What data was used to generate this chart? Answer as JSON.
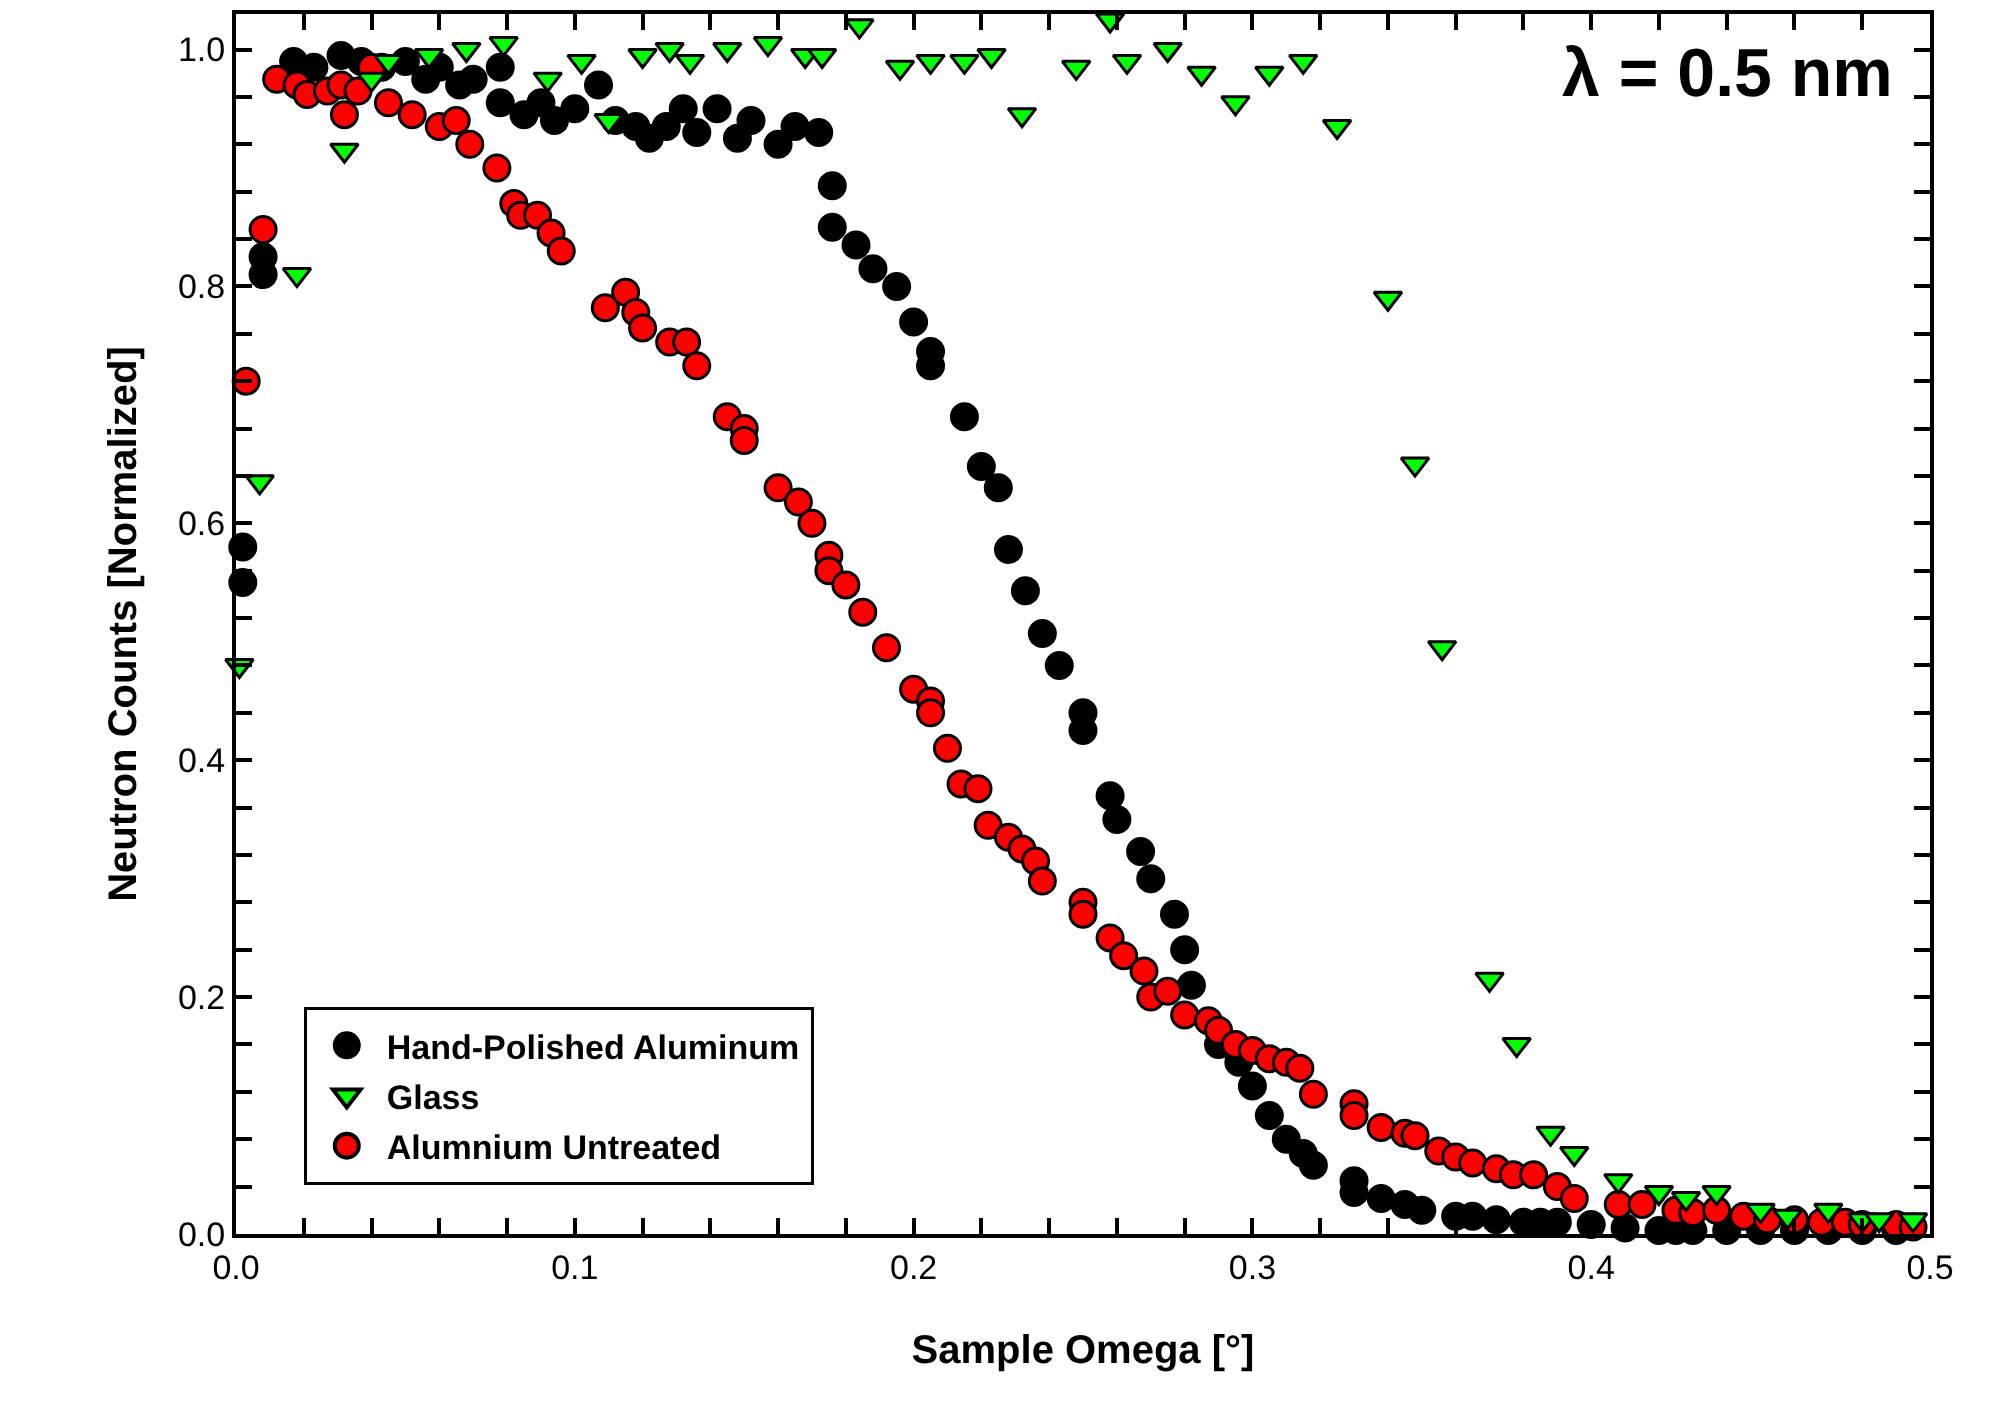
{
  "chart_data": {
    "type": "scatter",
    "xlabel": "Sample Omega [°]",
    "ylabel": "Neutron Counts [Normalized]",
    "annotations": [
      "λ = 0.5 nm"
    ],
    "xlim": [
      0,
      0.5
    ],
    "ylim": [
      0,
      1.03
    ],
    "xticks": [
      {
        "value": 0,
        "label": "0.0"
      },
      {
        "value": 0.02,
        "label": null
      },
      {
        "value": 0.04,
        "label": null
      },
      {
        "value": 0.06,
        "label": null
      },
      {
        "value": 0.08,
        "label": null
      },
      0.1,
      {
        "value": 0.12,
        "label": null
      },
      {
        "value": 0.14,
        "label": null
      },
      {
        "value": 0.16,
        "label": null
      },
      {
        "value": 0.18,
        "label": null
      },
      0.2,
      {
        "value": 0.22,
        "label": null
      },
      {
        "value": 0.24,
        "label": null
      },
      {
        "value": 0.26,
        "label": null
      },
      {
        "value": 0.28,
        "label": null
      },
      0.3,
      {
        "value": 0.32,
        "label": null
      },
      {
        "value": 0.34,
        "label": null
      },
      {
        "value": 0.36,
        "label": null
      },
      {
        "value": 0.38,
        "label": null
      },
      0.4,
      {
        "value": 0.42,
        "label": null
      },
      {
        "value": 0.44,
        "label": null
      },
      {
        "value": 0.46,
        "label": null
      },
      {
        "value": 0.48,
        "label": null
      },
      0.5
    ],
    "yticks": [
      {
        "value": 0,
        "label": "0.0"
      },
      {
        "value": 0.04,
        "label": null
      },
      {
        "value": 0.08,
        "label": null
      },
      {
        "value": 0.12,
        "label": null
      },
      {
        "value": 0.16,
        "label": null
      },
      0.2,
      {
        "value": 0.24,
        "label": null
      },
      {
        "value": 0.28,
        "label": null
      },
      {
        "value": 0.32,
        "label": null
      },
      {
        "value": 0.36,
        "label": null
      },
      0.4,
      {
        "value": 0.44,
        "label": null
      },
      {
        "value": 0.48,
        "label": null
      },
      {
        "value": 0.52,
        "label": null
      },
      {
        "value": 0.56,
        "label": null
      },
      0.6,
      {
        "value": 0.64,
        "label": null
      },
      {
        "value": 0.68,
        "label": null
      },
      {
        "value": 0.72,
        "label": null
      },
      {
        "value": 0.76,
        "label": null
      },
      0.8,
      {
        "value": 0.84,
        "label": null
      },
      {
        "value": 0.88,
        "label": null
      },
      {
        "value": 0.92,
        "label": null
      },
      {
        "value": 0.96,
        "label": null
      },
      {
        "value": 1,
        "label": "1.0"
      }
    ],
    "legend": "bottom left",
    "series": [
      {
        "name": "Hand-Polished Aluminum",
        "color": "#000000",
        "marker": "circle",
        "x": [
          0.002,
          0.002,
          0.008,
          0.008,
          0.017,
          0.023,
          0.031,
          0.037,
          0.043,
          0.05,
          0.056,
          0.06,
          0.066,
          0.07,
          0.078,
          0.078,
          0.085,
          0.09,
          0.094,
          0.1,
          0.107,
          0.112,
          0.118,
          0.122,
          0.127,
          0.132,
          0.136,
          0.142,
          0.148,
          0.152,
          0.16,
          0.165,
          0.172,
          0.176,
          0.176,
          0.183,
          0.188,
          0.195,
          0.2,
          0.205,
          0.205,
          0.215,
          0.22,
          0.225,
          0.228,
          0.233,
          0.238,
          0.243,
          0.25,
          0.25,
          0.258,
          0.26,
          0.267,
          0.27,
          0.277,
          0.28,
          0.282,
          0.29,
          0.296,
          0.3,
          0.305,
          0.31,
          0.315,
          0.318,
          0.33,
          0.33,
          0.338,
          0.345,
          0.35,
          0.36,
          0.365,
          0.372,
          0.38,
          0.385,
          0.39,
          0.4,
          0.41,
          0.42,
          0.425,
          0.43,
          0.44,
          0.45,
          0.46,
          0.47,
          0.48,
          0.49
        ],
        "values": [
          0.58,
          0.55,
          0.825,
          0.81,
          0.99,
          0.985,
          0.995,
          0.99,
          0.985,
          0.99,
          0.975,
          0.985,
          0.97,
          0.975,
          0.985,
          0.955,
          0.945,
          0.955,
          0.94,
          0.95,
          0.97,
          0.94,
          0.935,
          0.925,
          0.935,
          0.95,
          0.93,
          0.95,
          0.925,
          0.94,
          0.92,
          0.935,
          0.93,
          0.885,
          0.85,
          0.835,
          0.815,
          0.8,
          0.77,
          0.745,
          0.733,
          0.69,
          0.648,
          0.63,
          0.578,
          0.543,
          0.507,
          0.48,
          0.44,
          0.425,
          0.37,
          0.35,
          0.323,
          0.3,
          0.27,
          0.24,
          0.21,
          0.16,
          0.145,
          0.125,
          0.1,
          0.08,
          0.068,
          0.058,
          0.045,
          0.035,
          0.03,
          0.025,
          0.02,
          0.015,
          0.015,
          0.012,
          0.01,
          0.01,
          0.01,
          0.008,
          0.005,
          0.003,
          0.003,
          0.003,
          0.003,
          0.003,
          0.003,
          0.003,
          0.003,
          0.003
        ]
      },
      {
        "name": "Glass",
        "color": "#00ff00",
        "marker": "triangle",
        "x": [
          0.001,
          0.007,
          0.018,
          0.032,
          0.04,
          0.045,
          0.057,
          0.068,
          0.079,
          0.092,
          0.102,
          0.11,
          0.12,
          0.128,
          0.134,
          0.145,
          0.157,
          0.168,
          0.173,
          0.184,
          0.196,
          0.205,
          0.215,
          0.223,
          0.232,
          0.248,
          0.258,
          0.263,
          0.275,
          0.285,
          0.295,
          0.305,
          0.315,
          0.325,
          0.34,
          0.348,
          0.356,
          0.37,
          0.378,
          0.388,
          0.395,
          0.408,
          0.42,
          0.428,
          0.437,
          0.45,
          0.458,
          0.47,
          0.48,
          0.485,
          0.495
        ],
        "values": [
          0.48,
          0.635,
          0.81,
          0.915,
          0.975,
          0.99,
          0.995,
          1.0,
          1.005,
          0.975,
          0.99,
          0.94,
          0.995,
          1.0,
          0.99,
          1.0,
          1.005,
          0.995,
          0.995,
          1.02,
          0.985,
          0.99,
          0.99,
          0.995,
          0.945,
          0.985,
          1.025,
          0.99,
          1.0,
          0.98,
          0.955,
          0.98,
          0.99,
          0.935,
          0.79,
          0.65,
          0.495,
          0.215,
          0.16,
          0.085,
          0.068,
          0.045,
          0.035,
          0.03,
          0.035,
          0.02,
          0.015,
          0.02,
          0.012,
          0.012,
          0.012
        ]
      },
      {
        "name": "Alumnium Untreated",
        "color": "#ff0000",
        "marker": "circle",
        "x": [
          0.003,
          0.008,
          0.012,
          0.018,
          0.021,
          0.027,
          0.031,
          0.032,
          0.036,
          0.04,
          0.045,
          0.052,
          0.06,
          0.065,
          0.069,
          0.077,
          0.082,
          0.084,
          0.089,
          0.093,
          0.096,
          0.109,
          0.115,
          0.118,
          0.12,
          0.128,
          0.133,
          0.136,
          0.145,
          0.15,
          0.15,
          0.16,
          0.166,
          0.17,
          0.175,
          0.175,
          0.18,
          0.185,
          0.192,
          0.2,
          0.205,
          0.205,
          0.21,
          0.214,
          0.219,
          0.222,
          0.228,
          0.232,
          0.236,
          0.238,
          0.25,
          0.25,
          0.258,
          0.262,
          0.268,
          0.27,
          0.275,
          0.28,
          0.287,
          0.29,
          0.295,
          0.3,
          0.305,
          0.31,
          0.314,
          0.318,
          0.33,
          0.33,
          0.338,
          0.345,
          0.348,
          0.355,
          0.36,
          0.365,
          0.372,
          0.377,
          0.383,
          0.39,
          0.395,
          0.408,
          0.415,
          0.425,
          0.43,
          0.437,
          0.445,
          0.452,
          0.46,
          0.468,
          0.475,
          0.48,
          0.49,
          0.495
        ],
        "values": [
          0.72,
          0.848,
          0.975,
          0.97,
          0.962,
          0.965,
          0.97,
          0.945,
          0.965,
          0.985,
          0.955,
          0.945,
          0.935,
          0.94,
          0.92,
          0.9,
          0.87,
          0.86,
          0.86,
          0.845,
          0.83,
          0.782,
          0.795,
          0.778,
          0.765,
          0.753,
          0.753,
          0.733,
          0.69,
          0.68,
          0.67,
          0.63,
          0.618,
          0.6,
          0.573,
          0.56,
          0.548,
          0.525,
          0.495,
          0.46,
          0.45,
          0.44,
          0.41,
          0.38,
          0.376,
          0.345,
          0.335,
          0.325,
          0.315,
          0.298,
          0.28,
          0.27,
          0.25,
          0.235,
          0.222,
          0.2,
          0.205,
          0.185,
          0.18,
          0.172,
          0.16,
          0.155,
          0.148,
          0.145,
          0.14,
          0.118,
          0.11,
          0.1,
          0.09,
          0.085,
          0.083,
          0.07,
          0.065,
          0.06,
          0.055,
          0.05,
          0.05,
          0.04,
          0.03,
          0.025,
          0.025,
          0.02,
          0.018,
          0.02,
          0.015,
          0.012,
          0.012,
          0.01,
          0.01,
          0.008,
          0.008,
          0.006
        ]
      }
    ]
  }
}
